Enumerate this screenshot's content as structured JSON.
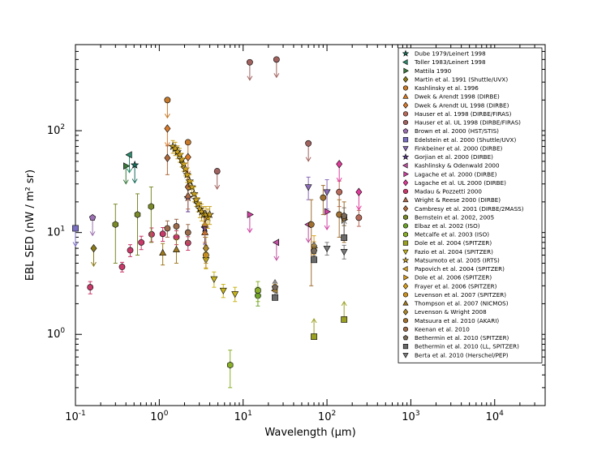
{
  "chart_data": {
    "type": "scatter",
    "title": "",
    "xlabel": "Wavelength (μm)",
    "ylabel": "EBL SED (nW / m² sr)",
    "xscale": "log",
    "yscale": "log",
    "xlim": [
      0.1,
      40000
    ],
    "ylim": [
      0.2,
      700
    ],
    "legend_loc": "upper right",
    "x_ticks": [
      {
        "value": 0.1,
        "base": "10",
        "exp": "-1"
      },
      {
        "value": 1,
        "base": "10",
        "exp": "0"
      },
      {
        "value": 10,
        "base": "10",
        "exp": "1"
      },
      {
        "value": 100,
        "base": "10",
        "exp": "2"
      },
      {
        "value": 1000,
        "base": "10",
        "exp": "3"
      },
      {
        "value": 10000,
        "base": "10",
        "exp": "4"
      }
    ],
    "y_ticks": [
      {
        "value": 1,
        "base": "10",
        "exp": "0"
      },
      {
        "value": 10,
        "base": "10",
        "exp": "1"
      },
      {
        "value": 100,
        "base": "10",
        "exp": "2"
      }
    ],
    "series": [
      {
        "name": "Dube 1979/Leinert 1998",
        "marker": "star",
        "color": "#1a6b5a",
        "points": [
          {
            "x": 0.51,
            "y": 46,
            "limit": "upper"
          }
        ]
      },
      {
        "name": "Toller 1983/Leinert 1998",
        "marker": "tri-left",
        "color": "#2e8b70",
        "points": [
          {
            "x": 0.44,
            "y": 58,
            "limit": "upper"
          }
        ]
      },
      {
        "name": "Mattila 1990",
        "marker": "tri-right",
        "color": "#3d7a3d",
        "points": [
          {
            "x": 0.4,
            "y": 45,
            "limit": "upper"
          }
        ]
      },
      {
        "name": "Martin et al. 1991 (Shuttle/UVX)",
        "marker": "diamond",
        "color": "#8b7a1a",
        "points": [
          {
            "x": 0.165,
            "y": 7,
            "limit": "upper"
          }
        ]
      },
      {
        "name": "Kashlinsky et al. 1996",
        "marker": "circle",
        "color": "#c77a2a",
        "points": [
          {
            "x": 1.25,
            "y": 200,
            "limit": "upper"
          },
          {
            "x": 2.2,
            "y": 77,
            "limit": "upper"
          }
        ]
      },
      {
        "name": "Dwek & Arendt 1998 (DIRBE)",
        "marker": "tri-up",
        "color": "#d9781f",
        "points": [
          {
            "x": 3.5,
            "y": 10,
            "err": [
              2,
              2
            ]
          }
        ]
      },
      {
        "name": "Dwek & Arendt UL 1998 (DIRBE)",
        "marker": "diamond",
        "color": "#d97a2a",
        "points": [
          {
            "x": 1.25,
            "y": 105,
            "limit": "upper"
          },
          {
            "x": 2.2,
            "y": 55,
            "limit": "upper"
          }
        ]
      },
      {
        "name": "Hauser et al. 1998 (DIRBE/FIRAS)",
        "marker": "circle",
        "color": "#b86a5a",
        "points": [
          {
            "x": 140,
            "y": 25,
            "err": [
              7,
              7
            ]
          },
          {
            "x": 240,
            "y": 14,
            "err": [
              2.5,
              2.5
            ]
          }
        ]
      },
      {
        "name": "Hauser et al. UL 1998 (DIRBE/FIRAS)",
        "marker": "circle",
        "color": "#a0625e",
        "points": [
          {
            "x": 12,
            "y": 470,
            "limit": "upper"
          },
          {
            "x": 25,
            "y": 500,
            "limit": "upper"
          },
          {
            "x": 60,
            "y": 75,
            "limit": "upper"
          },
          {
            "x": 4.9,
            "y": 40,
            "limit": "upper"
          }
        ]
      },
      {
        "name": "Brown et al. 2000 (HST/STIS)",
        "marker": "pentagon",
        "color": "#9b6fb0",
        "points": [
          {
            "x": 0.16,
            "y": 14,
            "limit": "upper"
          }
        ]
      },
      {
        "name": "Edelstein et al. 2000 (Shuttle/UVX)",
        "marker": "square",
        "color": "#7a6fc0",
        "points": [
          {
            "x": 0.1,
            "y": 11,
            "limit": "upper"
          }
        ]
      },
      {
        "name": "Finkbeiner et al. 2000 (DIRBE)",
        "marker": "tri-down",
        "color": "#8a6ab8",
        "points": [
          {
            "x": 60,
            "y": 28,
            "err": [
              7,
              7
            ]
          },
          {
            "x": 100,
            "y": 25,
            "err": [
              8,
              8
            ]
          }
        ]
      },
      {
        "name": "Gorjian et al. 2000 (DIRBE)",
        "marker": "star",
        "color": "#5a3a8a",
        "points": [
          {
            "x": 2.2,
            "y": 22,
            "err": [
              6,
              6
            ]
          },
          {
            "x": 3.5,
            "y": 11,
            "err": [
              3.3,
              3.3
            ]
          }
        ]
      },
      {
        "name": "Kashlinsky & Odenwald 2000",
        "marker": "tri-left",
        "color": "#c050a0",
        "points": [
          {
            "x": 25,
            "y": 8,
            "limit": "upper"
          },
          {
            "x": 60,
            "y": 12,
            "limit": "upper"
          }
        ]
      },
      {
        "name": "Lagache et al. 2000 (DIRBE)",
        "marker": "tri-right",
        "color": "#d040a0",
        "points": [
          {
            "x": 12,
            "y": 15,
            "limit": "upper"
          },
          {
            "x": 100,
            "y": 16,
            "limit": "upper"
          }
        ]
      },
      {
        "name": "Lagache et al. UL 2000 (DIRBE)",
        "marker": "diamond",
        "color": "#e03a9a",
        "points": [
          {
            "x": 140,
            "y": 47,
            "limit": "upper"
          },
          {
            "x": 240,
            "y": 25,
            "limit": "upper"
          }
        ]
      },
      {
        "name": "Madau & Pozzetti 2000",
        "marker": "circle",
        "color": "#c83a6a",
        "points": [
          {
            "x": 0.15,
            "y": 2.9,
            "err": [
              0.4,
              0.4
            ]
          },
          {
            "x": 0.36,
            "y": 4.6,
            "err": [
              0.5,
              0.5
            ]
          },
          {
            "x": 0.45,
            "y": 6.7,
            "err": [
              0.9,
              0.9
            ]
          },
          {
            "x": 0.61,
            "y": 8,
            "err": [
              1.2,
              1.2
            ]
          },
          {
            "x": 0.81,
            "y": 9.6,
            "err": [
              1.5,
              1.5
            ]
          },
          {
            "x": 1.1,
            "y": 9.7,
            "err": [
              1.5,
              1.5
            ]
          },
          {
            "x": 1.6,
            "y": 9,
            "err": [
              1.4,
              1.4
            ]
          },
          {
            "x": 2.2,
            "y": 7.9,
            "err": [
              1.2,
              1.2
            ]
          }
        ]
      },
      {
        "name": "Wright & Reese 2000 (DIRBE)",
        "marker": "tri-up",
        "color": "#b06a4a",
        "points": [
          {
            "x": 2.2,
            "y": 23,
            "err": [
              6,
              6
            ]
          },
          {
            "x": 3.5,
            "y": 12,
            "err": [
              3,
              3
            ]
          }
        ]
      },
      {
        "name": "Cambresy et al. 2001 (DIRBE/2MASS)",
        "marker": "diamond",
        "color": "#b06a3a",
        "points": [
          {
            "x": 1.25,
            "y": 54,
            "err": [
              17,
              17
            ]
          },
          {
            "x": 2.2,
            "y": 28,
            "err": [
              7,
              7
            ]
          }
        ]
      },
      {
        "name": "Bernstein et al. 2002, 2005",
        "marker": "hexagon",
        "color": "#7a8a2a",
        "points": [
          {
            "x": 0.3,
            "y": 12,
            "err": [
              7,
              7
            ]
          },
          {
            "x": 0.55,
            "y": 15,
            "err": [
              9,
              9
            ]
          },
          {
            "x": 0.8,
            "y": 18,
            "err": [
              10,
              10
            ]
          }
        ]
      },
      {
        "name": "Elbaz et al. 2002 (ISO)",
        "marker": "circle",
        "color": "#6aa02a",
        "points": [
          {
            "x": 15,
            "y": 2.4,
            "err": [
              0.5,
              0.5
            ]
          }
        ]
      },
      {
        "name": "Metcalfe et al. 2003 (ISO)",
        "marker": "hexagon",
        "color": "#8ab02a",
        "points": [
          {
            "x": 7,
            "y": 0.5,
            "err": [
              0.2,
              0.2
            ]
          },
          {
            "x": 15,
            "y": 2.7,
            "err": [
              0.6,
              0.6
            ]
          }
        ]
      },
      {
        "name": "Dole et al. 2004 (SPITZER)",
        "marker": "square",
        "color": "#9aa022",
        "points": [
          {
            "x": 70,
            "y": 0.95,
            "limit": "lower"
          },
          {
            "x": 160,
            "y": 1.4,
            "limit": "lower"
          }
        ]
      },
      {
        "name": "Fazio et al. 2004 (SPITZER)",
        "marker": "tri-down",
        "color": "#c8b41a",
        "points": [
          {
            "x": 3.6,
            "y": 5.4,
            "err": [
              1,
              1
            ]
          },
          {
            "x": 4.5,
            "y": 3.5,
            "err": [
              0.6,
              0.6
            ]
          },
          {
            "x": 5.8,
            "y": 2.7,
            "err": [
              0.4,
              0.4
            ]
          },
          {
            "x": 8,
            "y": 2.5,
            "err": [
              0.4,
              0.4
            ]
          }
        ]
      },
      {
        "name": "Matsumoto et al. 2005 (IRTS)",
        "marker": "star",
        "color": "#c8a020",
        "points": [
          {
            "x": 1.45,
            "y": 70,
            "err": [
              10,
              10
            ]
          },
          {
            "x": 1.55,
            "y": 67,
            "err": [
              10,
              10
            ]
          },
          {
            "x": 1.65,
            "y": 62,
            "err": [
              9,
              9
            ]
          },
          {
            "x": 1.75,
            "y": 58,
            "err": [
              9,
              9
            ]
          },
          {
            "x": 1.85,
            "y": 52,
            "err": [
              8,
              8
            ]
          },
          {
            "x": 1.95,
            "y": 47,
            "err": [
              7,
              7
            ]
          },
          {
            "x": 2.05,
            "y": 42,
            "err": [
              6,
              6
            ]
          },
          {
            "x": 2.15,
            "y": 37,
            "err": [
              6,
              6
            ]
          },
          {
            "x": 2.3,
            "y": 32,
            "err": [
              5,
              5
            ]
          },
          {
            "x": 2.45,
            "y": 28,
            "err": [
              4,
              4
            ]
          },
          {
            "x": 2.6,
            "y": 24,
            "err": [
              4,
              4
            ]
          },
          {
            "x": 2.75,
            "y": 21,
            "err": [
              3,
              3
            ]
          },
          {
            "x": 2.9,
            "y": 19,
            "err": [
              3,
              3
            ]
          },
          {
            "x": 3.05,
            "y": 17,
            "err": [
              3,
              3
            ]
          },
          {
            "x": 3.2,
            "y": 16,
            "err": [
              3,
              3
            ]
          },
          {
            "x": 3.4,
            "y": 15,
            "err": [
              3,
              3
            ]
          },
          {
            "x": 3.6,
            "y": 15,
            "err": [
              3,
              3
            ]
          },
          {
            "x": 3.8,
            "y": 14,
            "err": [
              3,
              3
            ]
          },
          {
            "x": 4.0,
            "y": 15,
            "err": [
              3,
              3
            ]
          }
        ]
      },
      {
        "name": "Papovich et al. 2004 (SPITZER)",
        "marker": "tri-left",
        "color": "#d9a020",
        "points": [
          {
            "x": 24,
            "y": 2.7,
            "err": [
              0.4,
              0.4
            ]
          }
        ]
      },
      {
        "name": "Dole et al. 2006 (SPITZER)",
        "marker": "tri-right",
        "color": "#d99a1a",
        "points": [
          {
            "x": 70,
            "y": 7.1,
            "err": [
              1,
              1
            ]
          },
          {
            "x": 160,
            "y": 13.4,
            "err": [
              1.7,
              1.7
            ]
          }
        ]
      },
      {
        "name": "Frayer et al. 2006 (SPITZER)",
        "marker": "diamond",
        "color": "#d9a01a",
        "points": [
          {
            "x": 70,
            "y": 7.4,
            "err": [
              1.9,
              1.9
            ]
          }
        ]
      },
      {
        "name": "Levenson et al. 2007 (SPITZER)",
        "marker": "circle",
        "color": "#c89020",
        "points": [
          {
            "x": 3.6,
            "y": 6,
            "err": [
              1.5,
              1.5
            ]
          }
        ]
      },
      {
        "name": "Thompson et al. 2007 (NICMOS)",
        "marker": "tri-up",
        "color": "#a07a20",
        "points": [
          {
            "x": 1.1,
            "y": 6.3,
            "err": [
              1.5,
              1.5
            ]
          },
          {
            "x": 1.6,
            "y": 6.8,
            "err": [
              1.8,
              1.8
            ]
          }
        ]
      },
      {
        "name": "Levenson & Wright 2008",
        "marker": "diamond",
        "color": "#b08a2a",
        "points": [
          {
            "x": 3.6,
            "y": 7,
            "err": [
              2,
              2
            ]
          }
        ]
      },
      {
        "name": "Matsuura et al. 2010 (AKARI)",
        "marker": "circle",
        "color": "#a07030",
        "points": [
          {
            "x": 65,
            "y": 12,
            "err": [
              9,
              9
            ]
          },
          {
            "x": 90,
            "y": 22,
            "err": [
              7,
              7
            ]
          },
          {
            "x": 140,
            "y": 15,
            "err": [
              6,
              6
            ]
          },
          {
            "x": 160,
            "y": 14,
            "err": [
              6,
              6
            ]
          }
        ]
      },
      {
        "name": "Keenan et al. 2010",
        "marker": "circle",
        "color": "#9a6a4a",
        "points": [
          {
            "x": 1.25,
            "y": 11,
            "err": [
              2,
              2
            ]
          },
          {
            "x": 1.6,
            "y": 11.5,
            "err": [
              2,
              2
            ]
          },
          {
            "x": 2.2,
            "y": 10,
            "err": [
              2,
              2
            ]
          }
        ]
      },
      {
        "name": "Bethermin et al. 2010 (SPITZER)",
        "marker": "pentagon",
        "color": "#7a6a5a",
        "points": [
          {
            "x": 24,
            "y": 2.9,
            "err": [
              0.3,
              0.3
            ]
          },
          {
            "x": 70,
            "y": 6.6,
            "err": [
              0.7,
              0.7
            ]
          },
          {
            "x": 160,
            "y": 14.6,
            "err": [
              2.9,
              2.9
            ]
          }
        ]
      },
      {
        "name": "Bethermin et al. 2010 (LL, SPITZER)",
        "marker": "square",
        "color": "#6a6a6a",
        "points": [
          {
            "x": 24,
            "y": 2.3,
            "limit": "lower"
          },
          {
            "x": 70,
            "y": 5.4,
            "limit": "lower"
          },
          {
            "x": 160,
            "y": 8.9,
            "limit": "lower"
          }
        ]
      },
      {
        "name": "Berta et al. 2010 (Herschel/PEP)",
        "marker": "tri-down",
        "color": "#7a7a7a",
        "points": [
          {
            "x": 100,
            "y": 7,
            "err": [
              1,
              1
            ]
          },
          {
            "x": 160,
            "y": 6.5,
            "err": [
              1,
              1
            ]
          }
        ]
      }
    ]
  }
}
